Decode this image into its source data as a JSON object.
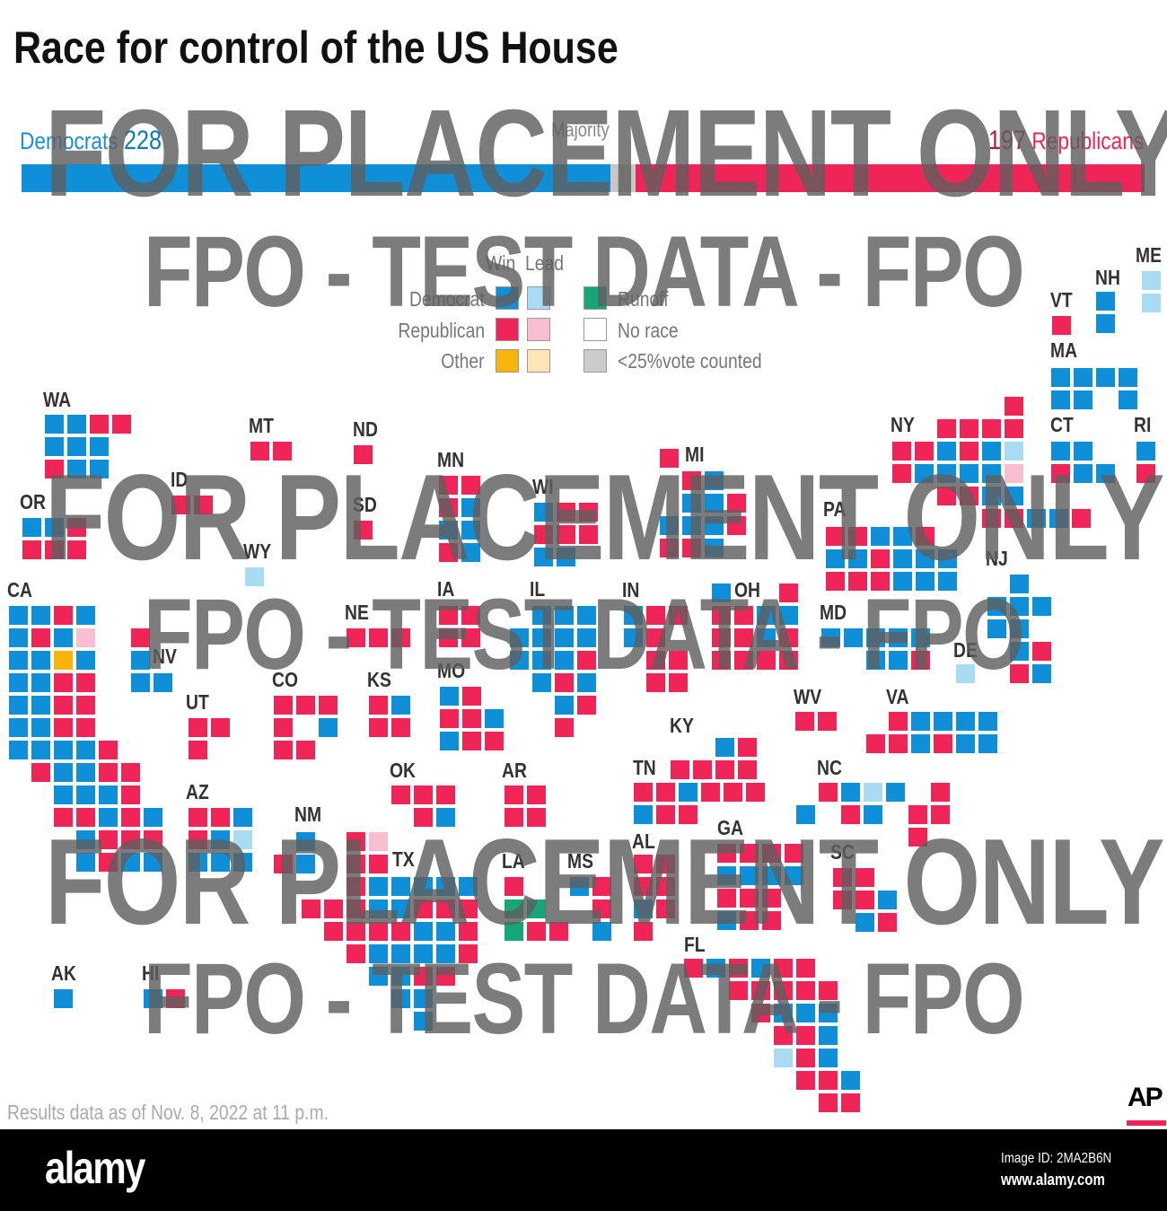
{
  "title": "Race for control of the US House",
  "tally": {
    "dem_label": "Democrats",
    "dem_seats": 228,
    "rep_label": "Republicans",
    "rep_seats": 197,
    "majority_label": "Majority",
    "total_seats": 435
  },
  "colors": {
    "dem_win": "#0f8fd7",
    "dem_lead": "#a9dbf3",
    "rep_win": "#ef2457",
    "rep_lead": "#f8bfd0",
    "other_win": "#f8b40b",
    "other_lead": "#fde5b8",
    "runoff": "#17a57a",
    "no_race": "#ffffff",
    "low_count": "#cbcbcb",
    "bar_undecided": "#c8c8c8"
  },
  "legend": {
    "win": "Win",
    "lead": "Lead",
    "democrat": "Democrat",
    "republican": "Republican",
    "other": "Other",
    "runoff": "Runoff",
    "no_race": "No race",
    "low_count": "<25%vote counted"
  },
  "tile_codes": {
    "D": "dem_win",
    "d": "dem_lead",
    "R": "rep_win",
    "r": "rep_lead",
    "O": "other_win",
    "o": "other_lead",
    "U": "runoff",
    "G": "low_count"
  },
  "states": [
    {
      "abbr": "WA",
      "rows": [
        "DDRR",
        "DDD",
        "RDD"
      ]
    },
    {
      "abbr": "OR",
      "rows": [
        "DDR",
        "RRR"
      ]
    },
    {
      "abbr": "CA",
      "rows": [
        "DDRD",
        "DRDr",
        "DDOD",
        "DDRR",
        "DDRR",
        "DDRR",
        "DDDDR",
        ".RDDRR",
        "..DDDR",
        "..RRDRD",
        "...DRRR",
        "...DRDD"
      ]
    },
    {
      "abbr": "ID",
      "rows": [
        "RR"
      ]
    },
    {
      "abbr": "MT",
      "rows": [
        "RR"
      ]
    },
    {
      "abbr": "ND",
      "rows": [
        "R"
      ]
    },
    {
      "abbr": "SD",
      "rows": [
        "R"
      ]
    },
    {
      "abbr": "WY",
      "rows": [
        "d"
      ]
    },
    {
      "abbr": "MN",
      "rows": [
        "RR",
        "RD",
        "DD",
        "RD"
      ]
    },
    {
      "abbr": "WI",
      "rows": [
        "DRR",
        "RRR",
        "DD"
      ]
    },
    {
      "abbr": "MI",
      "rows": [
        "R...",
        ".RD.",
        ".DDR",
        "DDDR",
        "RRD."
      ]
    },
    {
      "abbr": "NV",
      "rows": [
        "R",
        "D",
        "DD"
      ]
    },
    {
      "abbr": "UT",
      "rows": [
        "RR",
        "R"
      ]
    },
    {
      "abbr": "CO",
      "rows": [
        "RRR",
        "R.D",
        "RR"
      ]
    },
    {
      "abbr": "NE",
      "rows": [
        "RRR"
      ]
    },
    {
      "abbr": "KS",
      "rows": [
        "RD",
        "RR"
      ]
    },
    {
      "abbr": "IA",
      "rows": [
        "RR",
        "RR"
      ]
    },
    {
      "abbr": "MO",
      "rows": [
        "DR",
        "RRD",
        "DRR"
      ]
    },
    {
      "abbr": "IL",
      "rows": [
        ".DDD",
        "DDDD",
        "DDDR",
        ".DRD",
        "..DR",
        "..R"
      ]
    },
    {
      "abbr": "IN",
      "rows": [
        "DRR",
        "DR.",
        ".RR",
        ".RR"
      ]
    },
    {
      "abbr": "OH",
      "rows": [
        "D..R",
        "RRDD",
        "RRDR",
        "RRRR"
      ]
    },
    {
      "abbr": "PA",
      "rows": [
        "RRDDR",
        "DDRDDD",
        "RRRDDD"
      ]
    },
    {
      "abbr": "NY",
      "rows": [
        ".....R",
        "..RRRR",
        "RRDRDd",
        "RDDDDr",
        "..RRDD",
        "....RRDDR"
      ]
    },
    {
      "abbr": "VT",
      "rows": [
        "R"
      ]
    },
    {
      "abbr": "NH",
      "rows": [
        "D",
        "D"
      ]
    },
    {
      "abbr": "ME",
      "rows": [
        "d",
        "d"
      ]
    },
    {
      "abbr": "MA",
      "rows": [
        "DDDD",
        "DD.D"
      ]
    },
    {
      "abbr": "CT",
      "rows": [
        "DD",
        "RDD"
      ]
    },
    {
      "abbr": "RI",
      "rows": [
        "D",
        "R"
      ]
    },
    {
      "abbr": "NJ",
      "rows": [
        ".D.",
        "DDD",
        "DD.",
        ".DR",
        ".RD"
      ]
    },
    {
      "abbr": "MD",
      "rows": [
        "DDDDD",
        "..DDR"
      ]
    },
    {
      "abbr": "DE",
      "rows": [
        "d"
      ]
    },
    {
      "abbr": "WV",
      "rows": [
        "RR"
      ]
    },
    {
      "abbr": "VA",
      "rows": [
        ".RDDDD",
        "RRDRDD"
      ]
    },
    {
      "abbr": "KY",
      "rows": [
        "..DR",
        "RRRR"
      ]
    },
    {
      "abbr": "TN",
      "rows": [
        "RRDRRR",
        "DRR"
      ]
    },
    {
      "abbr": "NC",
      "rows": [
        ".RDdD.R",
        "D.RD.RR",
        ".....R"
      ]
    },
    {
      "abbr": "AZ",
      "rows": [
        "RRD",
        "RDd",
        "DDD"
      ]
    },
    {
      "abbr": "NM",
      "rows": [
        ".D",
        "RD"
      ]
    },
    {
      "abbr": "OK",
      "rows": [
        "RRR",
        ".RD"
      ]
    },
    {
      "abbr": "AR",
      "rows": [
        "RR",
        "RR"
      ]
    },
    {
      "abbr": "TX",
      "rows": [
        "..Rr",
        "..RR",
        "..RDDDDD",
        "RRRDDRRR",
        ".RRRRDDR",
        "..RDDDDR",
        "...DDRR",
        "....DD",
        ".....D"
      ]
    },
    {
      "abbr": "LA",
      "rows": [
        "R",
        "UU",
        "URR"
      ]
    },
    {
      "abbr": "MS",
      "rows": [
        "DR",
        ".R",
        ".D"
      ]
    },
    {
      "abbr": "AL",
      "rows": [
        "RR",
        "RR",
        "DR",
        "R"
      ]
    },
    {
      "abbr": "GA",
      "rows": [
        "RRRR",
        "DDDD",
        "RRR",
        "DRR"
      ]
    },
    {
      "abbr": "SC",
      "rows": [
        "RR",
        "RRD",
        ".DR"
      ]
    },
    {
      "abbr": "FL",
      "rows": [
        "RDRDRR",
        "..RRRRR",
        "...RDDD",
        "....RRD",
        "....dRD",
        ".....RRD",
        "......RR"
      ]
    },
    {
      "abbr": "AK",
      "rows": [
        "D"
      ]
    },
    {
      "abbr": "HI",
      "rows": [
        "DR"
      ]
    }
  ],
  "watermarks": {
    "placement": "FOR PLACEMENT ONLY",
    "test": "FPO - TEST DATA - FPO",
    "alamy_inline": "alamy"
  },
  "footer": {
    "note": "Results data as of Nov. 8, 2022 at 11 p.m.",
    "source_logo": "AP"
  },
  "stock_bar": {
    "logo": "alamy",
    "image_id": "Image ID: 2MA2B6N",
    "url": "www.alamy.com"
  }
}
